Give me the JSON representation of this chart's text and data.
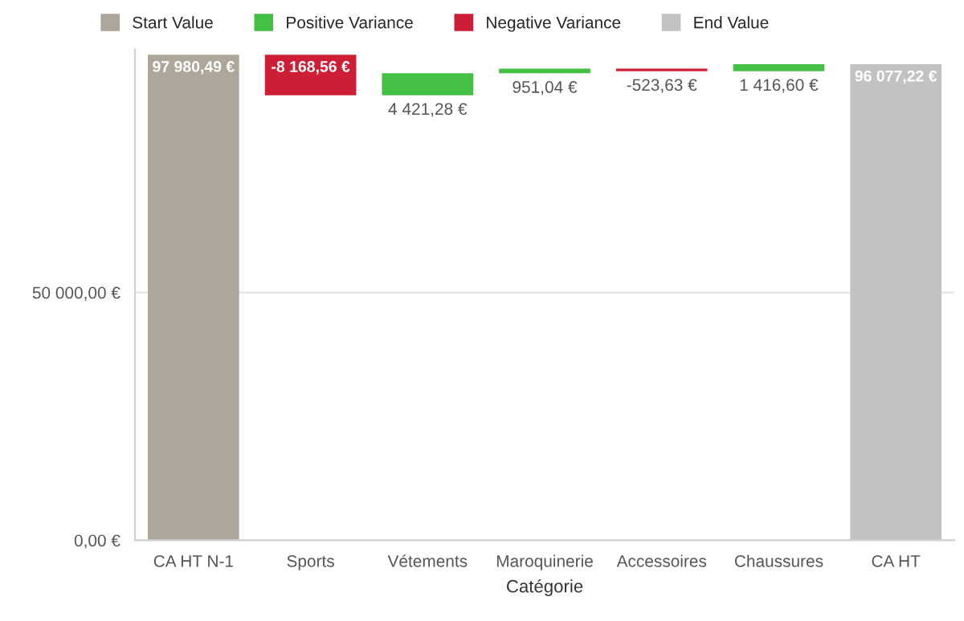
{
  "chart_data": {
    "type": "bar",
    "xlabel": "Catégorie",
    "categories": [
      "CA HT N-1",
      "Sports",
      "Vétements",
      "Maroquinerie",
      "Accessoires",
      "Chaussures",
      "CA HT"
    ],
    "series": [
      {
        "name": "Start Value",
        "color": "#aca79a",
        "values": [
          97980.49,
          null,
          null,
          null,
          null,
          null,
          null
        ],
        "base": [
          0,
          null,
          null,
          null,
          null,
          null,
          null
        ],
        "value_labels": [
          "97 980,49 €",
          null,
          null,
          null,
          null,
          null,
          null
        ]
      },
      {
        "name": "Positive Variance",
        "color": "#44c044",
        "values": [
          null,
          null,
          4421.28,
          951.04,
          null,
          1416.6,
          null
        ],
        "base": [
          null,
          null,
          89811.93,
          94233.21,
          null,
          94660.62,
          null
        ],
        "value_labels": [
          null,
          null,
          "4 421,28 €",
          "951,04 €",
          null,
          "1 416,60 €",
          null
        ]
      },
      {
        "name": "Negative Variance",
        "color": "#cc1f35",
        "values": [
          null,
          -8168.56,
          null,
          null,
          -523.63,
          null,
          null
        ],
        "base": [
          null,
          97980.49,
          null,
          null,
          95184.25,
          null,
          null
        ],
        "value_labels": [
          null,
          "-8 168,56 €",
          null,
          null,
          "-523,63 €",
          null,
          null
        ]
      },
      {
        "name": "End Value",
        "color": "#c2c2c2",
        "values": [
          null,
          null,
          null,
          null,
          null,
          null,
          96077.22
        ],
        "base": [
          null,
          null,
          null,
          null,
          null,
          null,
          0
        ],
        "value_labels": [
          null,
          null,
          null,
          null,
          null,
          null,
          "96 077,22 €"
        ]
      }
    ],
    "ylim": [
      0,
      99000
    ],
    "yticks": [
      {
        "value": 0,
        "label": "0,00 €"
      },
      {
        "value": 50000,
        "label": "50 000,00 €"
      }
    ],
    "grid": "y",
    "legend": "top left"
  }
}
